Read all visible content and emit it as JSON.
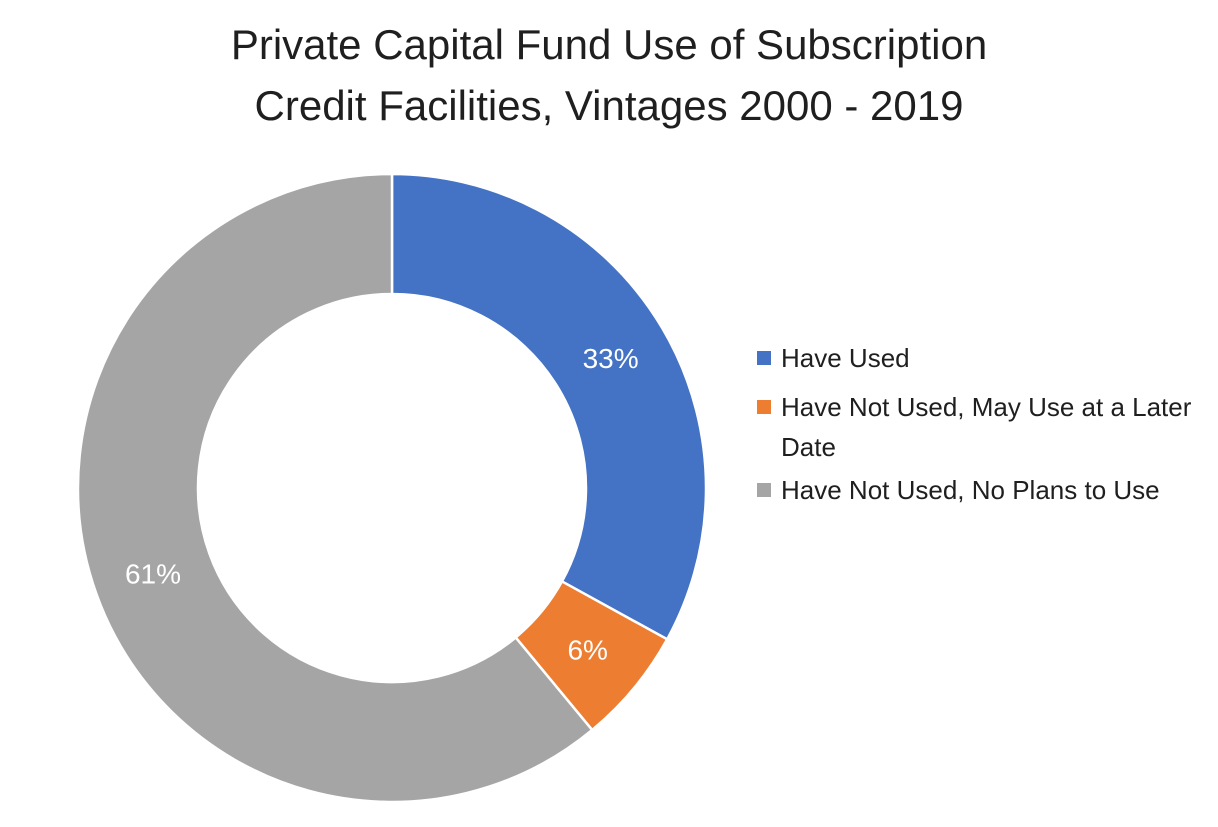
{
  "chart_data": {
    "type": "donut",
    "title": "Private Capital Fund Use of Subscription Credit Facilities, Vintages 2000 - 2019",
    "title_lines": [
      "Private Capital Fund Use of Subscription",
      "Credit Facilities, Vintages 2000 - 2019"
    ],
    "categories": [
      "Have Used",
      "Have Not Used, May Use at a Later Date",
      "Have Not Used, No Plans to Use"
    ],
    "values": [
      33,
      6,
      61
    ],
    "data_labels": [
      "33%",
      "6%",
      "61%"
    ],
    "colors": [
      "#4472C4",
      "#ED7D31",
      "#A5A5A5"
    ],
    "legend_position": "right",
    "start_angle": "12 o'clock, clockwise"
  }
}
